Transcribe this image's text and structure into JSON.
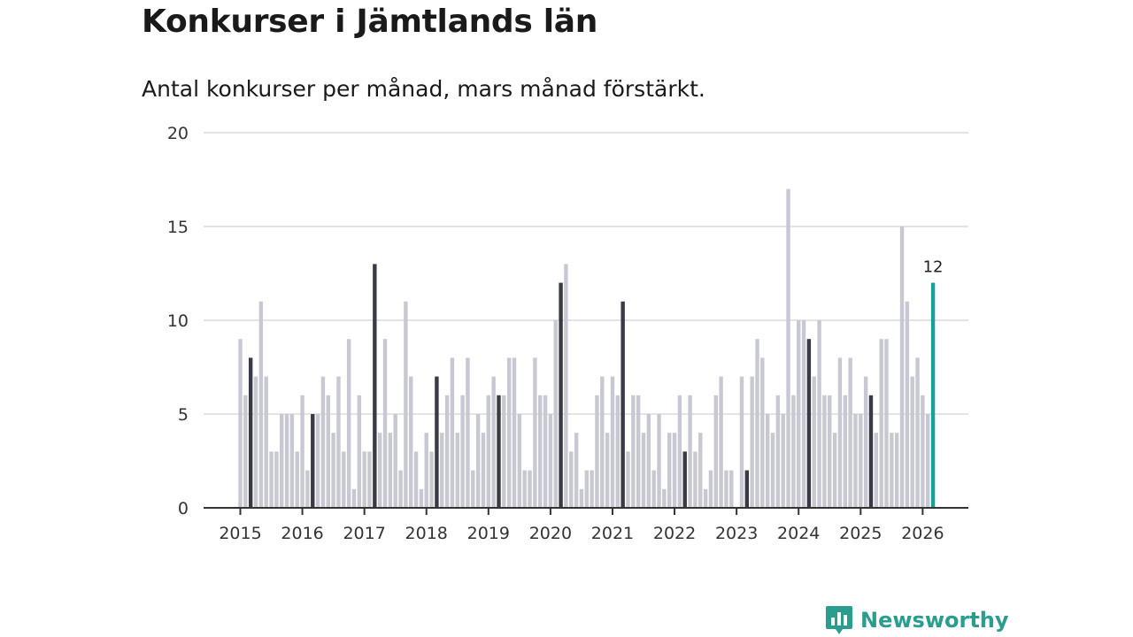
{
  "title": "Konkurser i Jämtlands län",
  "subtitle": "Antal konkurser per månad, mars månad förstärkt.",
  "brand": {
    "name": "Newsworthy",
    "color": "#2a9d8f"
  },
  "colors": {
    "bar": "#c8c8d2",
    "highlight": "#3a3a46",
    "latest": "#1a9e96",
    "grid": "#dcdcdc",
    "axis": "#333333"
  },
  "chart_data": {
    "type": "bar",
    "title": "Konkurser i Jämtlands län",
    "subtitle": "Antal konkurser per månad, mars månad förstärkt.",
    "xlabel": "",
    "ylabel": "",
    "ylim": [
      0,
      20
    ],
    "yticks": [
      0,
      5,
      10,
      15,
      20
    ],
    "xticks": [
      "2015",
      "2016",
      "2017",
      "2018",
      "2019",
      "2020",
      "2021",
      "2022",
      "2023",
      "2024",
      "2025",
      "2026"
    ],
    "start": "2015-01",
    "highlight_month": "March",
    "grid": true,
    "latest_label": "12",
    "values": [
      9,
      6,
      8,
      7,
      11,
      7,
      3,
      3,
      5,
      5,
      5,
      3,
      6,
      2,
      5,
      5,
      7,
      6,
      4,
      7,
      3,
      9,
      1,
      6,
      3,
      3,
      13,
      4,
      9,
      4,
      5,
      2,
      11,
      7,
      3,
      1,
      4,
      3,
      7,
      4,
      6,
      8,
      4,
      6,
      8,
      2,
      5,
      4,
      6,
      7,
      6,
      6,
      8,
      8,
      5,
      2,
      2,
      8,
      6,
      6,
      5,
      10,
      12,
      13,
      3,
      4,
      1,
      2,
      2,
      6,
      7,
      4,
      7,
      6,
      11,
      3,
      6,
      6,
      4,
      5,
      2,
      5,
      1,
      4,
      4,
      6,
      3,
      6,
      3,
      4,
      1,
      2,
      6,
      7,
      2,
      2,
      0,
      7,
      2,
      7,
      9,
      8,
      5,
      4,
      6,
      5,
      17,
      6,
      10,
      10,
      9,
      7,
      10,
      6,
      6,
      4,
      8,
      6,
      8,
      5,
      5,
      7,
      6,
      4,
      9,
      9,
      4,
      4,
      15,
      11,
      7,
      8,
      6,
      5,
      12
    ]
  }
}
